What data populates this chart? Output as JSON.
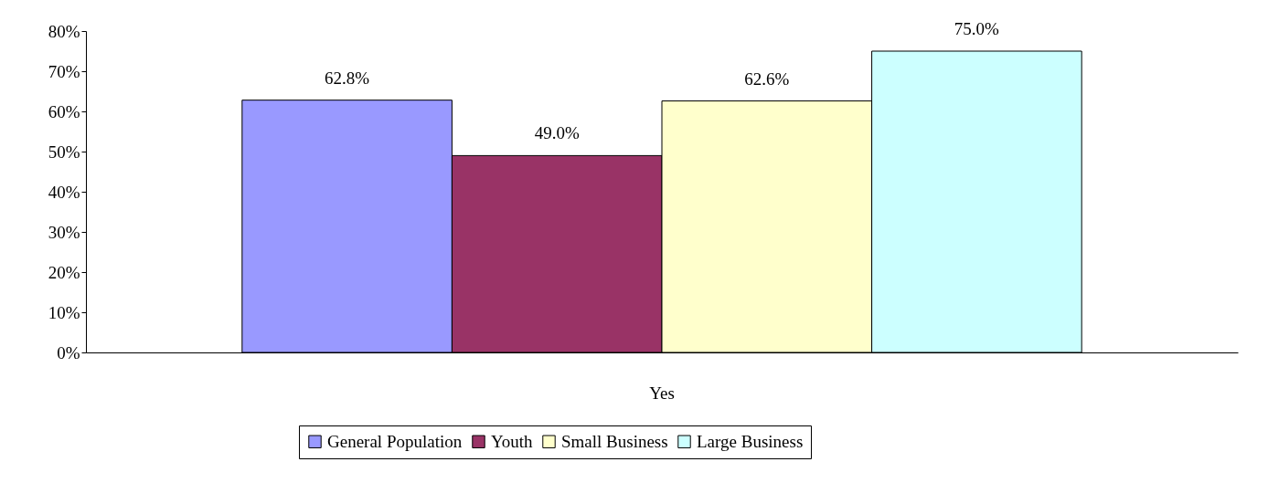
{
  "chart_data": {
    "type": "bar",
    "categories": [
      "Yes"
    ],
    "series": [
      {
        "name": "General Population",
        "color": "#9999ff",
        "values": [
          62.8
        ],
        "value_labels": [
          "62.8%"
        ]
      },
      {
        "name": "Youth",
        "color": "#993366",
        "values": [
          49.0
        ],
        "value_labels": [
          "49.0%"
        ]
      },
      {
        "name": "Small Business",
        "color": "#ffffcc",
        "values": [
          62.6
        ],
        "value_labels": [
          "62.6%"
        ]
      },
      {
        "name": "Large Business",
        "color": "#ccffff",
        "values": [
          75.0
        ],
        "value_labels": [
          "75.0%"
        ]
      }
    ],
    "ylim": [
      0,
      80
    ],
    "yticks": [
      {
        "value": 0,
        "label": "0%"
      },
      {
        "value": 10,
        "label": "10%"
      },
      {
        "value": 20,
        "label": "20%"
      },
      {
        "value": 30,
        "label": "30%"
      },
      {
        "value": 40,
        "label": "40%"
      },
      {
        "value": 50,
        "label": "50%"
      },
      {
        "value": 60,
        "label": "60%"
      },
      {
        "value": 70,
        "label": "70%"
      },
      {
        "value": 80,
        "label": "80%"
      }
    ],
    "legend": "bottom",
    "grid": false
  }
}
